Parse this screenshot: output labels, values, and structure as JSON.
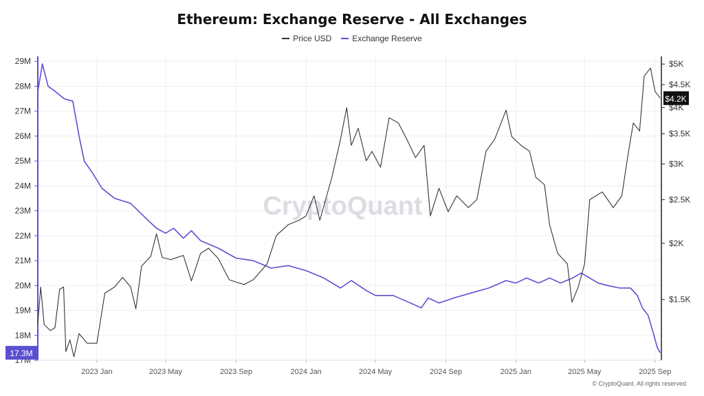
{
  "chart_data": {
    "type": "line",
    "title": "Ethereum: Exchange Reserve - All Exchanges",
    "legend": {
      "placement": "top-center",
      "entries": [
        "Price USD",
        "Exchange Reserve"
      ]
    },
    "colors": {
      "price": "#333333",
      "reserve": "#5b4fd1",
      "badge_reserve": "#5b4fd1",
      "badge_price": "#111111",
      "watermark": "#dcdce3"
    },
    "watermark": "CryptoQuant",
    "credit": "© CryptoQuant. All rights reserved",
    "x_range": [
      "2022-09-20",
      "2025-09-12"
    ],
    "x_ticks": [
      {
        "date": "2023-01-01",
        "label": "2023 Jan"
      },
      {
        "date": "2023-05-01",
        "label": "2023 May"
      },
      {
        "date": "2023-09-01",
        "label": "2023 Sep"
      },
      {
        "date": "2024-01-01",
        "label": "2024 Jan"
      },
      {
        "date": "2024-05-01",
        "label": "2024 May"
      },
      {
        "date": "2024-09-01",
        "label": "2024 Sep"
      },
      {
        "date": "2025-01-01",
        "label": "2025 Jan"
      },
      {
        "date": "2025-05-01",
        "label": "2025 May"
      },
      {
        "date": "2025-09-01",
        "label": "2025 Sep"
      }
    ],
    "y_left": {
      "ylim": [
        17000000,
        29200000
      ],
      "ticks": [
        {
          "value": 17000000,
          "label": "17M"
        },
        {
          "value": 18000000,
          "label": "18M"
        },
        {
          "value": 19000000,
          "label": "19M"
        },
        {
          "value": 20000000,
          "label": "20M"
        },
        {
          "value": 21000000,
          "label": "21M"
        },
        {
          "value": 22000000,
          "label": "22M"
        },
        {
          "value": 23000000,
          "label": "23M"
        },
        {
          "value": 24000000,
          "label": "24M"
        },
        {
          "value": 25000000,
          "label": "25M"
        },
        {
          "value": 26000000,
          "label": "26M"
        },
        {
          "value": 27000000,
          "label": "27M"
        },
        {
          "value": 28000000,
          "label": "28M"
        },
        {
          "value": 29000000,
          "label": "29M"
        }
      ],
      "current": {
        "value": 17300000,
        "label": "17.3M"
      }
    },
    "y_right": {
      "scale": "log",
      "ylim": [
        1100,
        5200
      ],
      "ticks": [
        {
          "value": 1500,
          "label": "$1.5K"
        },
        {
          "value": 2000,
          "label": "$2K"
        },
        {
          "value": 2500,
          "label": "$2.5K"
        },
        {
          "value": 3000,
          "label": "$3K"
        },
        {
          "value": 3500,
          "label": "$3.5K"
        },
        {
          "value": 4000,
          "label": "$4K"
        },
        {
          "value": 4500,
          "label": "$4.5K"
        },
        {
          "value": 5000,
          "label": "$5K"
        }
      ],
      "current": {
        "value": 4200,
        "label": "$4.2K"
      }
    },
    "series": [
      {
        "name": "Exchange Reserve",
        "axis": "left",
        "data": [
          [
            "2022-09-20",
            27800000.0
          ],
          [
            "2022-09-28",
            28900000.0
          ],
          [
            "2022-10-08",
            28000000.0
          ],
          [
            "2022-10-20",
            27800000.0
          ],
          [
            "2022-11-05",
            27500000.0
          ],
          [
            "2022-11-20",
            27400000.0
          ],
          [
            "2022-12-01",
            26000000.0
          ],
          [
            "2022-12-10",
            25000000.0
          ],
          [
            "2022-12-25",
            24500000.0
          ],
          [
            "2023-01-10",
            23900000.0
          ],
          [
            "2023-02-01",
            23500000.0
          ],
          [
            "2023-03-01",
            23300000.0
          ],
          [
            "2023-04-01",
            22600000.0
          ],
          [
            "2023-04-15",
            22300000.0
          ],
          [
            "2023-05-01",
            22100000.0
          ],
          [
            "2023-05-15",
            22300000.0
          ],
          [
            "2023-06-01",
            21900000.0
          ],
          [
            "2023-06-15",
            22200000.0
          ],
          [
            "2023-07-01",
            21800000.0
          ],
          [
            "2023-08-01",
            21500000.0
          ],
          [
            "2023-09-01",
            21100000.0
          ],
          [
            "2023-10-01",
            21000000.0
          ],
          [
            "2023-11-01",
            20700000.0
          ],
          [
            "2023-12-01",
            20800000.0
          ],
          [
            "2024-01-01",
            20600000.0
          ],
          [
            "2024-02-01",
            20300000.0
          ],
          [
            "2024-03-01",
            19900000.0
          ],
          [
            "2024-03-20",
            20200000.0
          ],
          [
            "2024-04-15",
            19800000.0
          ],
          [
            "2024-05-01",
            19600000.0
          ],
          [
            "2024-06-01",
            19600000.0
          ],
          [
            "2024-07-01",
            19300000.0
          ],
          [
            "2024-07-20",
            19100000.0
          ],
          [
            "2024-08-01",
            19500000.0
          ],
          [
            "2024-08-20",
            19300000.0
          ],
          [
            "2024-09-15",
            19500000.0
          ],
          [
            "2024-10-15",
            19700000.0
          ],
          [
            "2024-11-15",
            19900000.0
          ],
          [
            "2024-12-15",
            20200000.0
          ],
          [
            "2025-01-01",
            20100000.0
          ],
          [
            "2025-01-20",
            20300000.0
          ],
          [
            "2025-02-10",
            20100000.0
          ],
          [
            "2025-03-01",
            20300000.0
          ],
          [
            "2025-03-20",
            20100000.0
          ],
          [
            "2025-04-10",
            20300000.0
          ],
          [
            "2025-04-25",
            20500000.0
          ],
          [
            "2025-05-10",
            20300000.0
          ],
          [
            "2025-05-25",
            20100000.0
          ],
          [
            "2025-06-10",
            20000000.0
          ],
          [
            "2025-07-01",
            19900000.0
          ],
          [
            "2025-07-20",
            19900000.0
          ],
          [
            "2025-08-01",
            19600000.0
          ],
          [
            "2025-08-10",
            19100000.0
          ],
          [
            "2025-08-20",
            18800000.0
          ],
          [
            "2025-08-30",
            18000000.0
          ],
          [
            "2025-09-05",
            17500000.0
          ],
          [
            "2025-09-10",
            17300000.0
          ]
        ]
      },
      {
        "name": "Price USD",
        "axis": "right",
        "data": [
          [
            "2022-09-20",
            1330
          ],
          [
            "2022-09-25",
            1600
          ],
          [
            "2022-10-01",
            1320
          ],
          [
            "2022-10-12",
            1280
          ],
          [
            "2022-10-20",
            1300
          ],
          [
            "2022-10-28",
            1580
          ],
          [
            "2022-11-04",
            1600
          ],
          [
            "2022-11-08",
            1150
          ],
          [
            "2022-11-15",
            1220
          ],
          [
            "2022-11-22",
            1120
          ],
          [
            "2022-12-01",
            1260
          ],
          [
            "2022-12-15",
            1200
          ],
          [
            "2023-01-01",
            1200
          ],
          [
            "2023-01-15",
            1550
          ],
          [
            "2023-02-01",
            1600
          ],
          [
            "2023-02-15",
            1680
          ],
          [
            "2023-03-01",
            1600
          ],
          [
            "2023-03-10",
            1430
          ],
          [
            "2023-03-20",
            1780
          ],
          [
            "2023-04-05",
            1870
          ],
          [
            "2023-04-15",
            2100
          ],
          [
            "2023-04-25",
            1860
          ],
          [
            "2023-05-10",
            1840
          ],
          [
            "2023-06-01",
            1880
          ],
          [
            "2023-06-15",
            1650
          ],
          [
            "2023-07-01",
            1900
          ],
          [
            "2023-07-15",
            1950
          ],
          [
            "2023-08-01",
            1850
          ],
          [
            "2023-08-20",
            1660
          ],
          [
            "2023-09-01",
            1640
          ],
          [
            "2023-09-15",
            1620
          ],
          [
            "2023-10-01",
            1660
          ],
          [
            "2023-10-25",
            1800
          ],
          [
            "2023-11-10",
            2080
          ],
          [
            "2023-12-01",
            2200
          ],
          [
            "2023-12-20",
            2250
          ],
          [
            "2024-01-01",
            2300
          ],
          [
            "2024-01-15",
            2550
          ],
          [
            "2024-01-25",
            2250
          ],
          [
            "2024-02-15",
            2800
          ],
          [
            "2024-03-01",
            3400
          ],
          [
            "2024-03-12",
            4000
          ],
          [
            "2024-03-20",
            3300
          ],
          [
            "2024-04-01",
            3600
          ],
          [
            "2024-04-15",
            3050
          ],
          [
            "2024-04-25",
            3200
          ],
          [
            "2024-05-10",
            2950
          ],
          [
            "2024-05-25",
            3800
          ],
          [
            "2024-06-10",
            3700
          ],
          [
            "2024-06-25",
            3400
          ],
          [
            "2024-07-10",
            3100
          ],
          [
            "2024-07-25",
            3300
          ],
          [
            "2024-08-05",
            2300
          ],
          [
            "2024-08-20",
            2650
          ],
          [
            "2024-09-05",
            2350
          ],
          [
            "2024-09-20",
            2550
          ],
          [
            "2024-10-10",
            2400
          ],
          [
            "2024-10-25",
            2500
          ],
          [
            "2024-11-10",
            3200
          ],
          [
            "2024-11-25",
            3400
          ],
          [
            "2024-12-15",
            3950
          ],
          [
            "2024-12-25",
            3450
          ],
          [
            "2025-01-10",
            3300
          ],
          [
            "2025-01-25",
            3200
          ],
          [
            "2025-02-05",
            2800
          ],
          [
            "2025-02-20",
            2700
          ],
          [
            "2025-03-01",
            2200
          ],
          [
            "2025-03-15",
            1900
          ],
          [
            "2025-04-01",
            1800
          ],
          [
            "2025-04-09",
            1480
          ],
          [
            "2025-04-20",
            1600
          ],
          [
            "2025-05-01",
            1800
          ],
          [
            "2025-05-10",
            2500
          ],
          [
            "2025-06-01",
            2600
          ],
          [
            "2025-06-20",
            2400
          ],
          [
            "2025-07-05",
            2550
          ],
          [
            "2025-07-15",
            3100
          ],
          [
            "2025-07-25",
            3700
          ],
          [
            "2025-08-05",
            3550
          ],
          [
            "2025-08-13",
            4700
          ],
          [
            "2025-08-24",
            4900
          ],
          [
            "2025-09-01",
            4350
          ],
          [
            "2025-09-10",
            4200
          ]
        ]
      }
    ]
  }
}
